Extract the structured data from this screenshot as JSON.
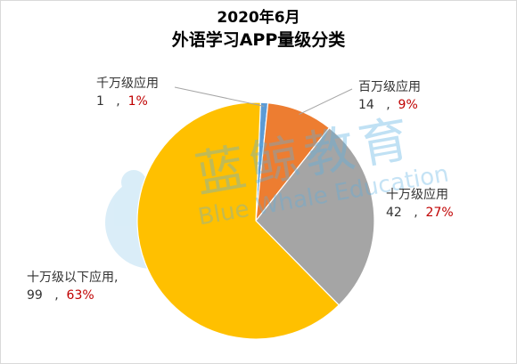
{
  "chart_data": {
    "type": "pie",
    "title": "2020年6月",
    "subtitle": "外语学习APP量级分类",
    "slices": [
      {
        "label": "千万级应用",
        "count": "1",
        "percent_text": "1%",
        "value": 1,
        "color": "#5b9bd5"
      },
      {
        "label": "百万级应用",
        "count": "14",
        "percent_text": "9%",
        "value": 9,
        "color": "#ed7d31"
      },
      {
        "label": "十万级应用",
        "count": "42",
        "percent_text": "27%",
        "value": 27,
        "color": "#a5a5a5"
      },
      {
        "label": "十万级以下应用,",
        "count": "99",
        "percent_text": "63%",
        "value": 63,
        "color": "#ffc000"
      }
    ],
    "separator": ",",
    "legend": "none"
  },
  "watermark": {
    "cn": "蓝鲸教育",
    "en": "Blue Whale Education"
  }
}
